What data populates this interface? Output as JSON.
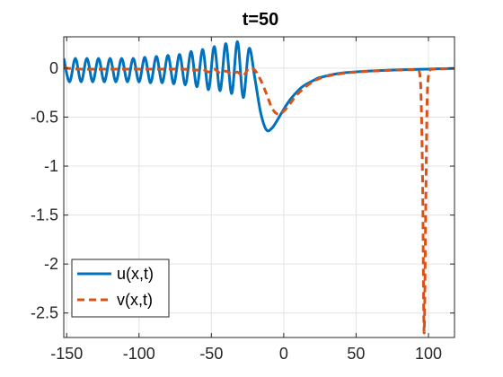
{
  "chart_data": {
    "type": "line",
    "title": "t=50",
    "xlabel": "",
    "ylabel": "",
    "xlim": [
      -152,
      118
    ],
    "ylim": [
      -2.75,
      0.32
    ],
    "xticks": [
      -150,
      -100,
      -50,
      0,
      50,
      100
    ],
    "xtick_labels": [
      "-150",
      "-100",
      "-50",
      "0",
      "50",
      "100"
    ],
    "yticks": [
      0,
      -0.5,
      -1,
      -1.5,
      -2,
      -2.5
    ],
    "ytick_labels": [
      "0",
      "-0.5",
      "-1",
      "-1.5",
      "-2",
      "-2.5"
    ],
    "grid": true,
    "legend_position": "bottom-left",
    "series": [
      {
        "name": "u(x,t)",
        "color": "#0072BD",
        "style": "solid",
        "x": [
          -152,
          -148,
          -144,
          -140,
          -136,
          -132,
          -128,
          -124,
          -120,
          -116,
          -112,
          -108,
          -104,
          -100,
          -96,
          -92,
          -88,
          -84,
          -80,
          -76,
          -72,
          -68,
          -64,
          -60,
          -56,
          -52,
          -48,
          -44,
          -40,
          -36,
          -32,
          -28,
          -24,
          -20,
          -16,
          -12,
          -8,
          -4,
          0,
          4,
          8,
          12,
          16,
          20,
          24,
          28,
          32,
          40,
          48,
          56,
          64,
          72,
          80,
          88,
          96,
          104,
          112,
          118
        ],
        "y": [
          0.1,
          -0.14,
          0.1,
          -0.14,
          0.1,
          -0.14,
          0.1,
          -0.14,
          0.1,
          -0.14,
          0.1,
          -0.14,
          0.1,
          -0.14,
          0.11,
          -0.15,
          0.12,
          -0.15,
          0.13,
          -0.16,
          0.14,
          -0.17,
          0.17,
          -0.19,
          0.19,
          -0.22,
          0.22,
          -0.23,
          0.25,
          -0.26,
          0.27,
          -0.3,
          0.2,
          -0.1,
          -0.45,
          -0.63,
          -0.61,
          -0.52,
          -0.42,
          -0.33,
          -0.26,
          -0.2,
          -0.16,
          -0.13,
          -0.1,
          -0.085,
          -0.07,
          -0.05,
          -0.04,
          -0.032,
          -0.026,
          -0.021,
          -0.017,
          -0.014,
          -0.011,
          -0.008,
          -0.005,
          -0.003
        ]
      },
      {
        "name": "v(x,t)",
        "color": "#D95319",
        "style": "dashed",
        "x": [
          -152,
          -140,
          -130,
          -120,
          -110,
          -100,
          -90,
          -80,
          -70,
          -60,
          -56,
          -52,
          -48,
          -44,
          -40,
          -36,
          -32,
          -28,
          -24,
          -20,
          -16,
          -12,
          -8,
          -4,
          0,
          4,
          8,
          12,
          16,
          20,
          24,
          28,
          32,
          40,
          48,
          56,
          64,
          72,
          80,
          88,
          92,
          94,
          95,
          96,
          97,
          98,
          99,
          100,
          101,
          104,
          112,
          118
        ],
        "y": [
          0.0,
          -0.01,
          -0.01,
          -0.01,
          -0.01,
          -0.01,
          -0.01,
          -0.01,
          -0.01,
          -0.02,
          -0.01,
          -0.04,
          -0.01,
          -0.05,
          -0.03,
          -0.06,
          -0.04,
          -0.08,
          0.0,
          -0.02,
          -0.12,
          -0.26,
          -0.41,
          -0.47,
          -0.44,
          -0.37,
          -0.29,
          -0.23,
          -0.18,
          -0.14,
          -0.11,
          -0.09,
          -0.075,
          -0.055,
          -0.042,
          -0.034,
          -0.028,
          -0.023,
          -0.019,
          -0.016,
          -0.016,
          -0.06,
          -0.35,
          -1.2,
          -2.7,
          -1.6,
          -0.4,
          -0.08,
          -0.02,
          -0.01,
          -0.006,
          -0.004
        ]
      }
    ]
  }
}
